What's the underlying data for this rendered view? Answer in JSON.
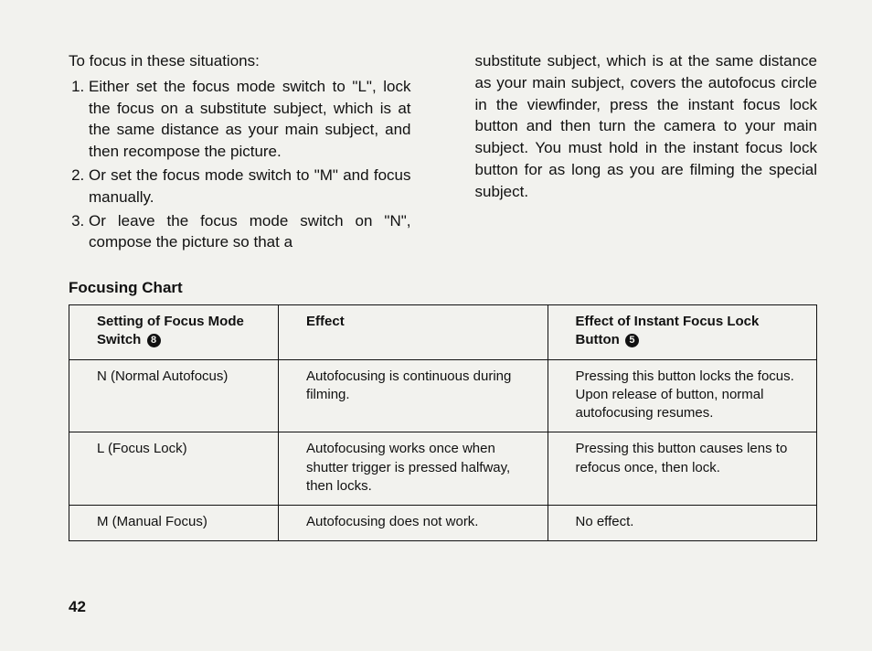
{
  "left": {
    "intro": "To focus in these situations:",
    "items": [
      "Either set the focus mode switch to \"L\", lock the focus on a substitute subject, which is at the same distance as your main subject, and then recompose the picture.",
      "Or set the focus mode switch to \"M\" and focus manually.",
      "Or leave the focus mode switch on \"N\", compose the picture so that a"
    ]
  },
  "right": {
    "para": "substitute subject, which is at the same distance as your main subject, covers the autofocus circle in the viewfinder, press the instant focus lock button and then turn the camera to your main subject. You must hold in the instant focus lock button for as long as you are filming the special subject."
  },
  "chart": {
    "title": "Focusing Chart",
    "header": {
      "c1a": "Setting of Focus Mode Switch",
      "c1_badge": "8",
      "c2": "Effect",
      "c3a": "Effect of Instant Focus Lock Button",
      "c3_badge": "5"
    },
    "rows": [
      {
        "c1": "N (Normal Autofocus)",
        "c2": "Autofocusing is continuous during filming.",
        "c3": "Pressing this button locks the focus. Upon release of button, normal autofocusing resumes."
      },
      {
        "c1": "L (Focus Lock)",
        "c2": "Autofocusing works once when shutter trigger is pressed halfway, then locks.",
        "c3": "Pressing this button causes lens to refocus once, then lock."
      },
      {
        "c1": "M (Manual Focus)",
        "c2": "Autofocusing does not work.",
        "c3": "No effect."
      }
    ],
    "col_widths": [
      "28%",
      "36%",
      "36%"
    ]
  },
  "page_number": "42"
}
